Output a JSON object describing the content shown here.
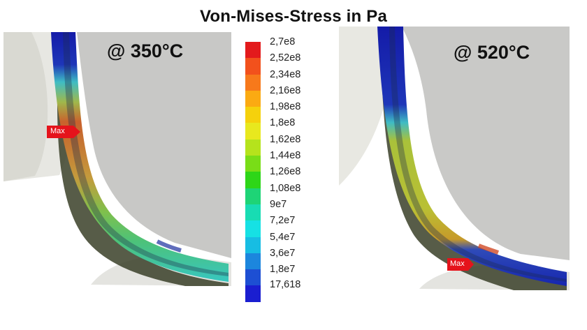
{
  "title": "Von-Mises-Stress in Pa",
  "panels": [
    {
      "temperature": "@ 350°C",
      "max_label": "Max"
    },
    {
      "temperature": "@ 520°C",
      "max_label": "Max"
    }
  ],
  "legend": {
    "labels": [
      "2,7e8",
      "2,52e8",
      "2,34e8",
      "2,16e8",
      "1,98e8",
      "1,8e8",
      "1,62e8",
      "1,44e8",
      "1,26e8",
      "1,08e8",
      "9e7",
      "7,2e7",
      "5,4e7",
      "3,6e7",
      "1,8e7",
      "17,618"
    ],
    "colors": [
      "#e31a1c",
      "#f2511c",
      "#f7791b",
      "#fbaa12",
      "#f5d10c",
      "#e8e81e",
      "#b5e31c",
      "#79dd17",
      "#2ed618",
      "#1ed476",
      "#18dcb3",
      "#16e1e4",
      "#17bde3",
      "#1c86dd",
      "#1d4fd3",
      "#1a1ed0"
    ]
  }
}
